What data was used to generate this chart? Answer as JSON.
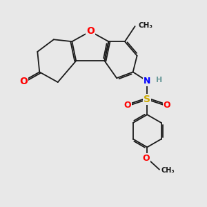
{
  "background_color": "#e8e8e8",
  "fig_size": [
    3.0,
    3.0
  ],
  "dpi": 100,
  "atom_colors": {
    "O": "#ff0000",
    "N": "#0000ff",
    "S": "#ccaa00",
    "H": "#808080",
    "C": "#1a1a1a"
  },
  "bond_color": "#1a1a1a",
  "bond_width": 1.3,
  "xlim": [
    0,
    10
  ],
  "ylim": [
    0,
    10
  ]
}
